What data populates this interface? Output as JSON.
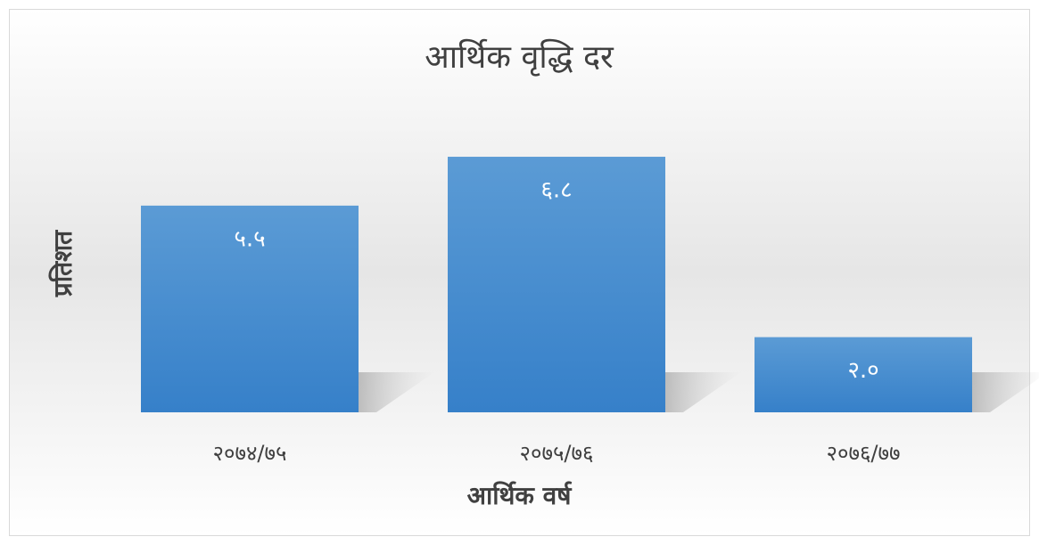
{
  "chart_data": {
    "type": "bar",
    "title": "आर्थिक वृद्धि दर",
    "categories": [
      "२०७४/७५",
      "२०७५/७६",
      "२०७६/७७"
    ],
    "values": [
      5.5,
      6.8,
      2.0
    ],
    "value_labels": [
      "५.५",
      "६.८",
      "२.०"
    ],
    "color": "#4a8fd2",
    "x_label": "आर्थिक वर्ष",
    "y_label": "प्रतिशत"
  }
}
